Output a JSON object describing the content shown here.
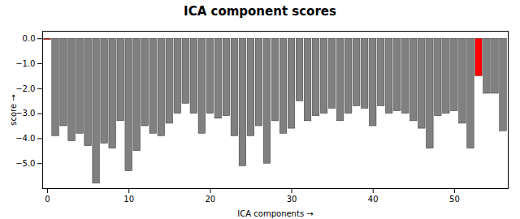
{
  "chart_data": {
    "type": "bar",
    "title": "ICA component scores",
    "xlabel": "ICA components",
    "ylabel": "score",
    "x": [
      0,
      1,
      2,
      3,
      4,
      5,
      6,
      7,
      8,
      9,
      10,
      11,
      12,
      13,
      14,
      15,
      16,
      17,
      18,
      19,
      20,
      21,
      22,
      23,
      24,
      25,
      26,
      27,
      28,
      29,
      30,
      31,
      32,
      33,
      34,
      35,
      36,
      37,
      38,
      39,
      40,
      41,
      42,
      43,
      44,
      45,
      46,
      47,
      48,
      49,
      50,
      51,
      52,
      53,
      54,
      55,
      56
    ],
    "values": [
      -0.05,
      -3.9,
      -3.5,
      -4.1,
      -3.8,
      -4.3,
      -5.8,
      -4.2,
      -4.4,
      -3.3,
      -5.3,
      -4.5,
      -3.5,
      -3.8,
      -3.9,
      -3.4,
      -3.0,
      -2.6,
      -3.0,
      -3.8,
      -3.0,
      -3.2,
      -3.1,
      -3.9,
      -5.1,
      -3.9,
      -3.5,
      -5.0,
      -3.3,
      -3.8,
      -3.6,
      -2.5,
      -3.3,
      -3.1,
      -3.0,
      -2.8,
      -3.3,
      -3.0,
      -2.7,
      -2.8,
      -3.5,
      -2.7,
      -3.0,
      -2.9,
      -3.0,
      -3.3,
      -3.6,
      -4.4,
      -3.1,
      -3.0,
      -2.9,
      -3.4,
      -4.4,
      -1.5,
      -2.2,
      -2.2,
      -3.7
    ],
    "colors": [
      "#ff0000",
      "#808080",
      "#808080",
      "#808080",
      "#808080",
      "#808080",
      "#808080",
      "#808080",
      "#808080",
      "#808080",
      "#808080",
      "#808080",
      "#808080",
      "#808080",
      "#808080",
      "#808080",
      "#808080",
      "#808080",
      "#808080",
      "#808080",
      "#808080",
      "#808080",
      "#808080",
      "#808080",
      "#808080",
      "#808080",
      "#808080",
      "#808080",
      "#808080",
      "#808080",
      "#808080",
      "#808080",
      "#808080",
      "#808080",
      "#808080",
      "#808080",
      "#808080",
      "#808080",
      "#808080",
      "#808080",
      "#808080",
      "#808080",
      "#808080",
      "#808080",
      "#808080",
      "#808080",
      "#808080",
      "#808080",
      "#808080",
      "#808080",
      "#808080",
      "#808080",
      "#808080",
      "#ff0000",
      "#808080",
      "#808080",
      "#808080"
    ],
    "ylim": [
      -6.0,
      0.3
    ],
    "yticks": [
      0,
      -1,
      -2,
      -3,
      -4,
      -5
    ],
    "xlim": [
      -0.6,
      56.6
    ],
    "xticks": [
      0,
      10,
      20,
      30,
      40,
      50
    ],
    "grid": false
  }
}
